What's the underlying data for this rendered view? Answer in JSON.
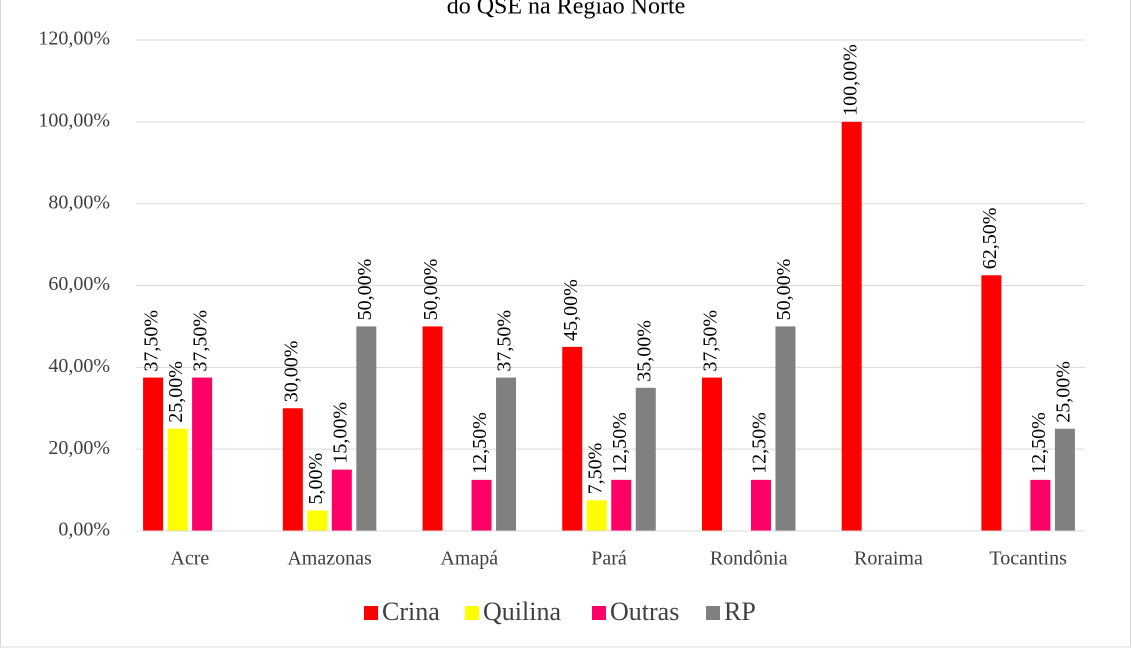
{
  "chart_data": {
    "type": "bar",
    "title": "do QSE na Região Norte",
    "categories": [
      "Acre",
      "Amazonas",
      "Amapá",
      "Pará",
      "Rondônia",
      "Roraima",
      "Tocantins"
    ],
    "series": [
      {
        "name": "Crina",
        "color": "#ff0000",
        "values": [
          37.5,
          30,
          50,
          45,
          37.5,
          100,
          62.5
        ],
        "value_labels": [
          "37,50%",
          "30,00%",
          "50,00%",
          "45,00%",
          "37,50%",
          "100,00%",
          "62,50%"
        ]
      },
      {
        "name": "Quilina",
        "color": "#ffff00",
        "values": [
          25,
          5,
          null,
          7.5,
          null,
          null,
          null
        ],
        "value_labels": [
          "25,00%",
          "5,00%",
          null,
          "7,50%",
          null,
          null,
          null
        ]
      },
      {
        "name": "Outras",
        "color": "#ff0066",
        "values": [
          37.5,
          15,
          12.5,
          12.5,
          12.5,
          null,
          12.5
        ],
        "value_labels": [
          "37,50%",
          "15,00%",
          "12,50%",
          "12,50%",
          "12,50%",
          null,
          "12,50%"
        ]
      },
      {
        "name": "RP",
        "color": "#808080",
        "values": [
          null,
          50,
          37.5,
          35,
          50,
          null,
          25
        ],
        "value_labels": [
          null,
          "50,00%",
          "37,50%",
          "35,00%",
          "50,00%",
          null,
          "25,00%"
        ]
      }
    ],
    "ylim": [
      0,
      120
    ],
    "yticks": [
      {
        "value": 0,
        "label": "0,00%"
      },
      {
        "value": 20,
        "label": "20,00%"
      },
      {
        "value": 40,
        "label": "40,00%"
      },
      {
        "value": 60,
        "label": "60,00%"
      },
      {
        "value": 80,
        "label": "80,00%"
      },
      {
        "value": 100,
        "label": "100,00%"
      },
      {
        "value": 120,
        "label": "120,00%"
      }
    ],
    "grid": true,
    "legend": "bottom"
  }
}
